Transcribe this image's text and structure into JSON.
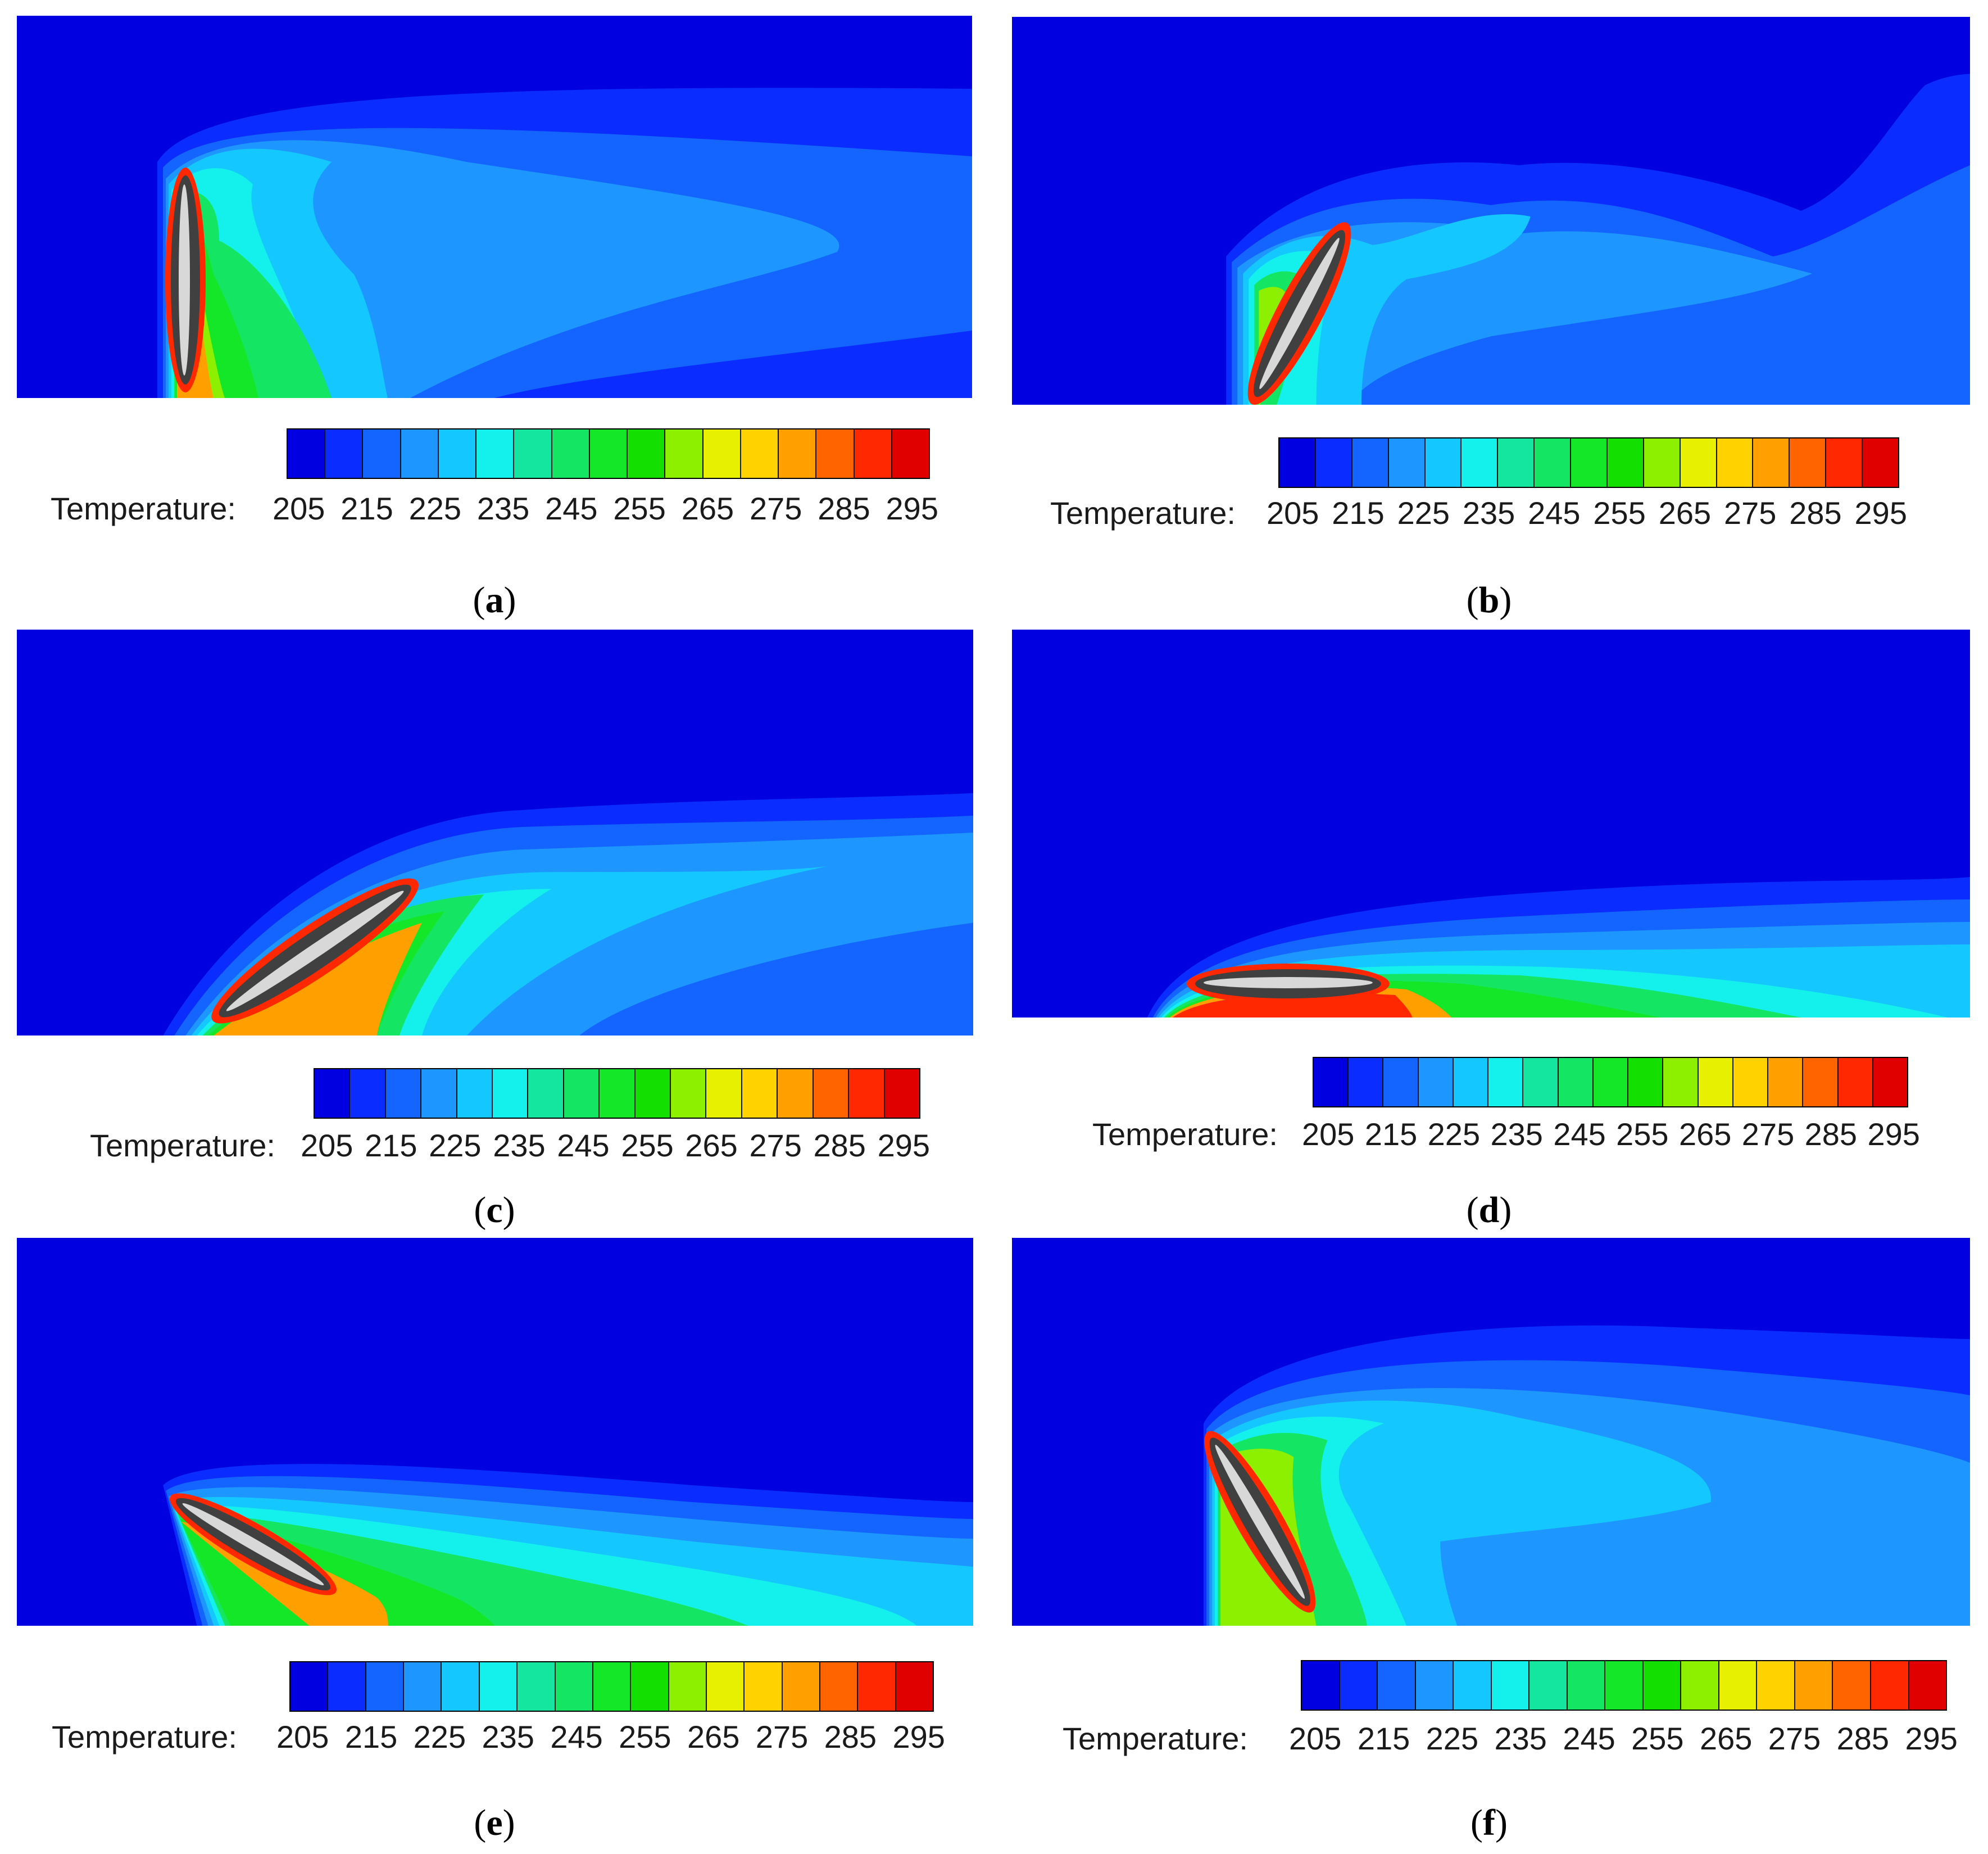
{
  "colorbar": {
    "label": "Temperature:",
    "ticks": [
      "205",
      "215",
      "225",
      "235",
      "245",
      "255",
      "265",
      "275",
      "285",
      "295"
    ],
    "colors": [
      "#0000e0",
      "#0a2cff",
      "#1464ff",
      "#1e96ff",
      "#14c8ff",
      "#14f0ec",
      "#14e6a0",
      "#14e664",
      "#14e628",
      "#14e000",
      "#8cf000",
      "#e6f000",
      "#ffd200",
      "#ffa000",
      "#ff6400",
      "#ff2800",
      "#e00000"
    ]
  },
  "panels": [
    {
      "id": "a",
      "caption_open": "(",
      "caption_letter": "a",
      "caption_close": ")"
    },
    {
      "id": "b",
      "caption_open": "(",
      "caption_letter": "b",
      "caption_close": ")"
    },
    {
      "id": "c",
      "caption_open": "(",
      "caption_letter": "c",
      "caption_close": ")"
    },
    {
      "id": "d",
      "caption_open": "(",
      "caption_letter": "d",
      "caption_close": ")"
    },
    {
      "id": "e",
      "caption_open": "(",
      "caption_letter": "e",
      "caption_close": ")"
    },
    {
      "id": "f",
      "caption_open": "(",
      "caption_letter": "f",
      "caption_close": ")"
    }
  ]
}
